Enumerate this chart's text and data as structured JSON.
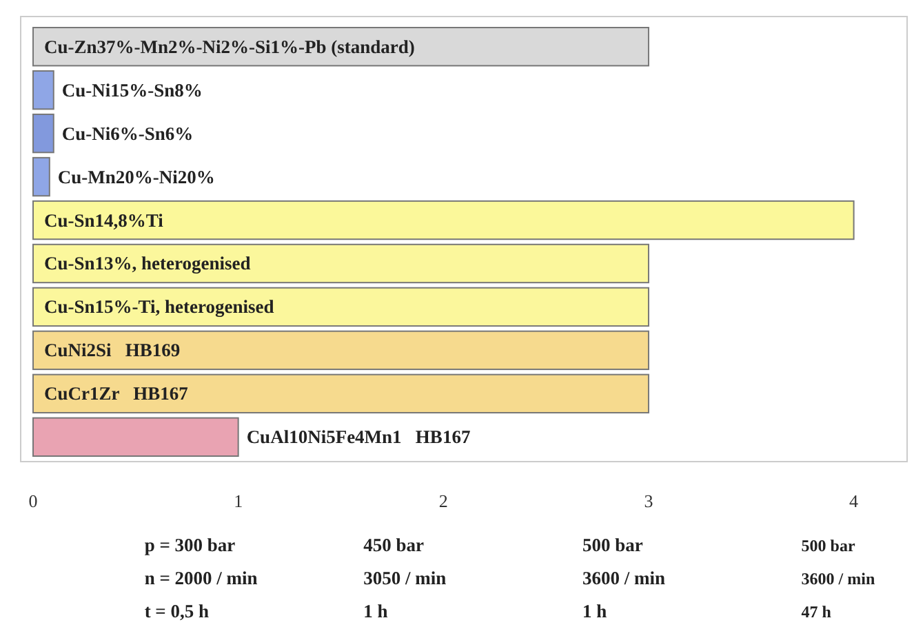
{
  "chart_data": {
    "type": "bar",
    "orientation": "horizontal",
    "categories": [
      "Cu-Zn37%-Mn2%-Ni2%-Si1%-Pb (standard)",
      "Cu-Ni15%-Sn8%",
      "Cu-Ni6%-Sn6%",
      "Cu-Mn20%-Ni20%",
      "Cu-Sn14,8%Ti",
      "Cu-Sn13%, heterogenised",
      "Cu-Sn15%-Ti, heterogenised",
      "CuNi2Si   HB169",
      "CuCr1Zr   HB167",
      "CuAl10Ni5Fe4Mn1   HB167"
    ],
    "values": [
      3,
      0.1,
      0.1,
      0.08,
      4,
      3,
      3,
      3,
      3,
      1
    ],
    "colors": [
      "#d9d9d9",
      "#8fa6e6",
      "#8299dd",
      "#8fa6e6",
      "#fbf89a",
      "#fbf79c",
      "#fbf79c",
      "#f6da8e",
      "#f6da8e",
      "#e9a3b2"
    ],
    "xlim": [
      0,
      4.26
    ],
    "xticks": [
      0,
      1,
      2,
      3,
      4
    ],
    "grid": false,
    "annotations": [
      "p = 300 bar\nn = 2000 / min\nt = 0,5 h",
      "450 bar\n3050 / min\n1 h",
      "500 bar\n3600 / min\n1 h",
      "500 bar\n3600 / min\n47 h"
    ]
  }
}
